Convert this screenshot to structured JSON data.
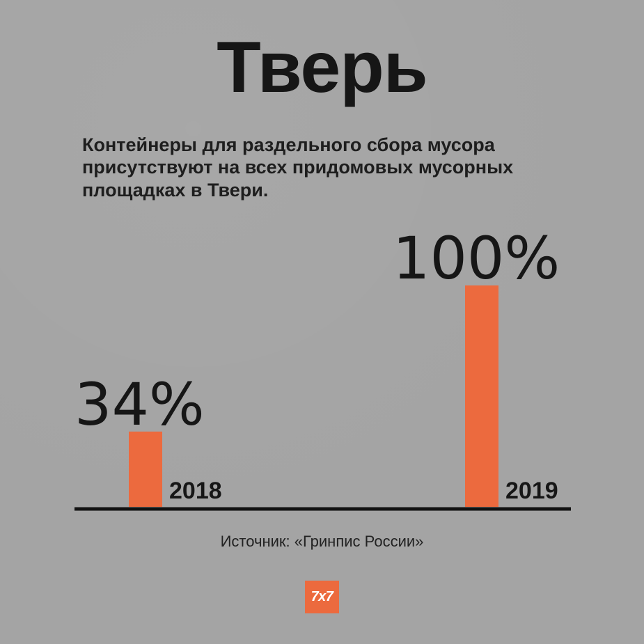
{
  "title": "Тверь",
  "subtitle": "Контейнеры для раздельного сбора мусора присутствуют на всех придомовых мусорных площадках в Твери.",
  "source": "Источник: «Гринпис России»",
  "logo_text": "7x7",
  "colors": {
    "background": "#a4a4a4",
    "bar": "#ec6a3e",
    "text": "#161616",
    "logo": "#ec6a3e"
  },
  "chart_data": {
    "type": "bar",
    "categories": [
      "2018",
      "2019"
    ],
    "values": [
      34,
      100
    ],
    "value_labels": [
      "34%",
      "100%"
    ],
    "unit": "%",
    "ylim": [
      0,
      100
    ],
    "grid": false,
    "legend": "none"
  }
}
